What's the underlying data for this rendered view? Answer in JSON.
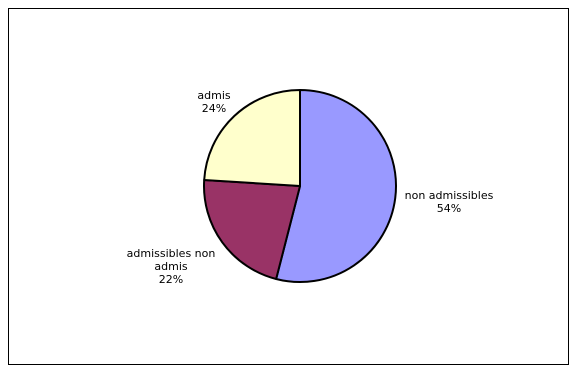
{
  "chart_data": {
    "type": "pie",
    "categories": [
      "non admissibles",
      "admissibles non admis",
      "admis"
    ],
    "values": [
      54,
      22,
      24
    ],
    "percent_labels": [
      "54%",
      "22%",
      "24%"
    ],
    "label_lines": [
      [
        "non admissibles",
        "54%"
      ],
      [
        "admissibles non",
        "admis",
        "22%"
      ],
      [
        "admis",
        "24%"
      ]
    ],
    "colors": [
      "#9999FF",
      "#993366",
      "#FFFFCC"
    ],
    "start": "12 o'clock",
    "direction": "clockwise"
  }
}
